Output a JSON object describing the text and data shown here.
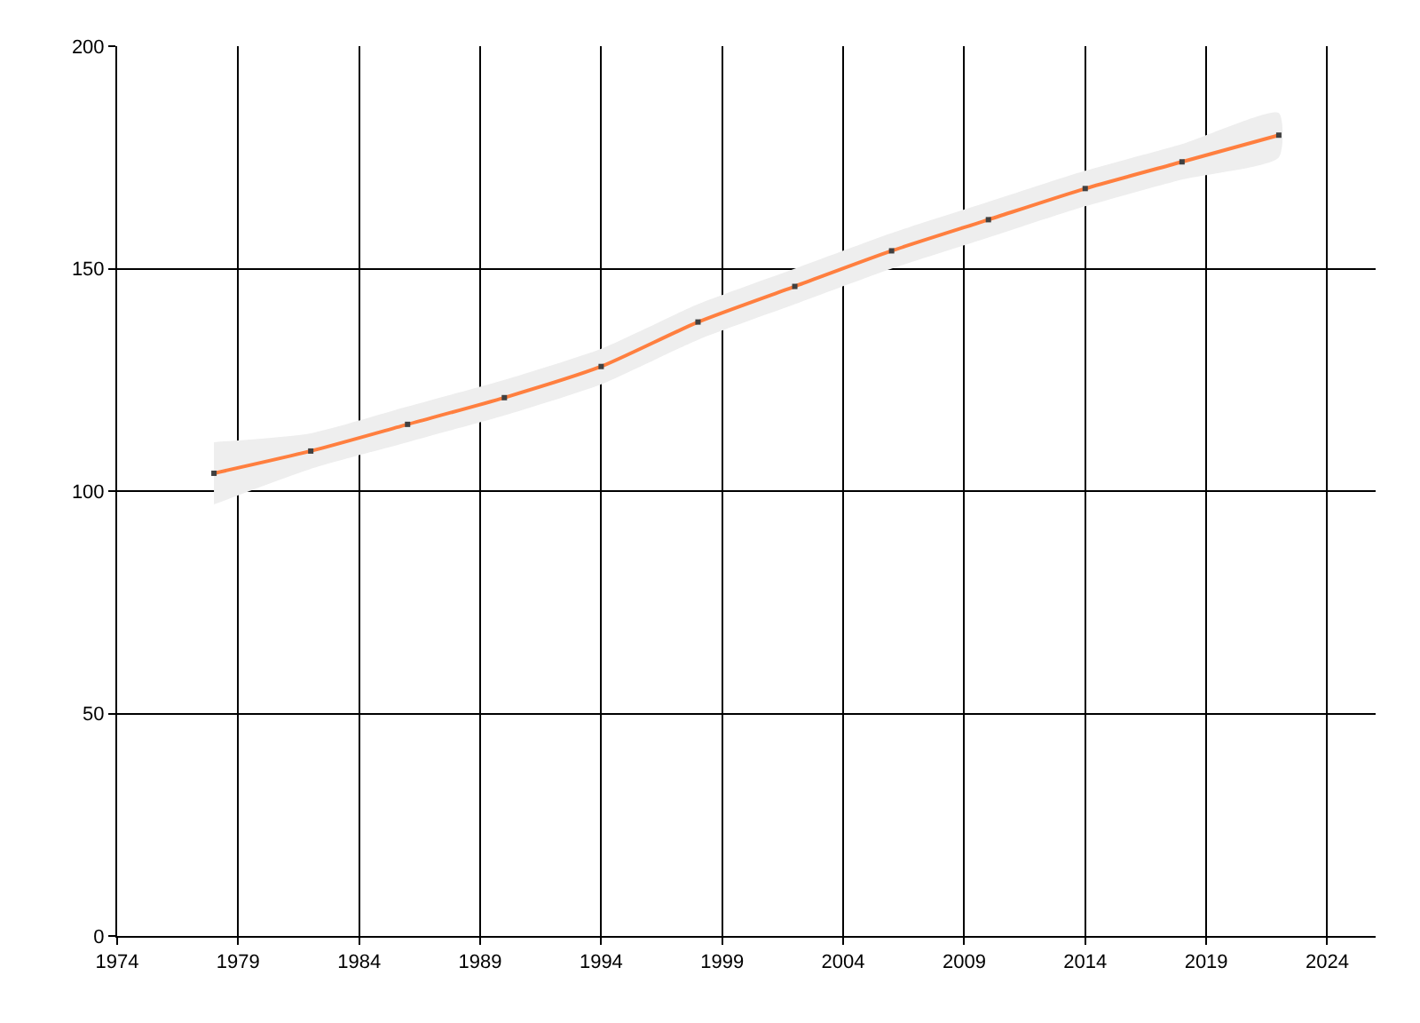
{
  "chart_data": {
    "type": "line",
    "x": [
      1978,
      1982,
      1986,
      1990,
      1994,
      1998,
      2002,
      2006,
      2010,
      2014,
      2018,
      2022
    ],
    "series": [
      {
        "color": "#ff7f3f",
        "values": [
          104,
          109,
          115,
          121,
          128,
          138,
          146,
          154,
          161,
          168,
          174,
          180
        ],
        "lower": [
          97,
          105,
          111,
          117,
          124,
          134,
          142,
          150,
          157,
          164,
          170,
          175
        ],
        "upper": [
          111,
          113,
          119,
          125,
          132,
          142,
          150,
          158,
          165,
          172,
          178,
          185
        ]
      }
    ],
    "xlim": [
      1974,
      2026
    ],
    "ylim": [
      0,
      200
    ],
    "xticks": [
      1974,
      1979,
      1984,
      1989,
      1994,
      1999,
      2004,
      2009,
      2014,
      2019,
      2024
    ],
    "yticks": [
      0,
      50,
      100,
      150,
      200
    ],
    "grid": true,
    "marker": "square",
    "line_style": "solid"
  }
}
